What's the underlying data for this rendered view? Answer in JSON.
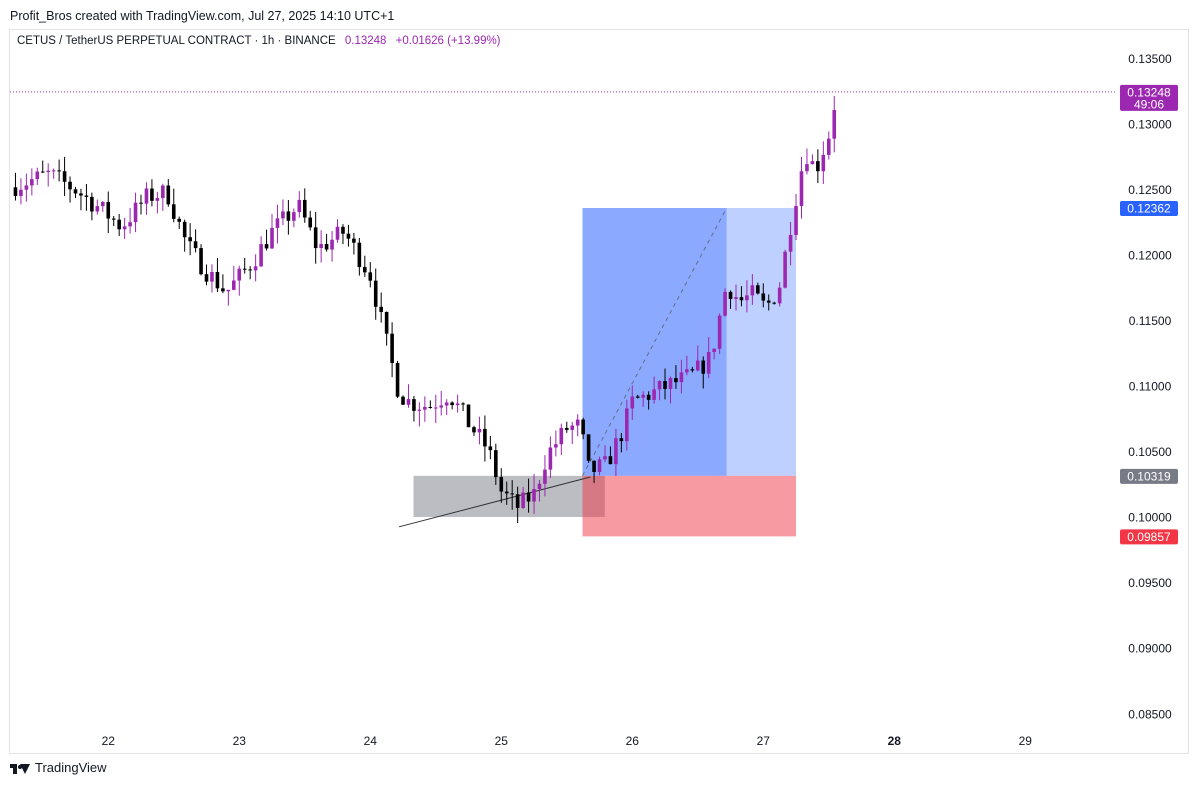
{
  "header": {
    "attribution": "Profit_Bros created with TradingView.com, Jul 27, 2025 14:10 UTC+1"
  },
  "symbol_line": {
    "symbol": "CETUS / TetherUS PERPETUAL CONTRACT · 1h · BINANCE",
    "price": "0.13248",
    "change": "+0.01626 (+13.99%)"
  },
  "footer": {
    "brand": "TradingView"
  },
  "colors": {
    "candle_up": "#9c27b0",
    "candle_down": "#000000",
    "target_zone": "#2962ff",
    "stop_zone": "#f23645",
    "grey_zone": "#787b86",
    "axis_text": "#131722"
  },
  "chart_data": {
    "type": "candlestick",
    "timeframe": "1h",
    "x_ticks": [
      "22",
      "23",
      "24",
      "25",
      "26",
      "27",
      "28",
      "29"
    ],
    "x_domain": [
      21.25,
      29.7
    ],
    "y_ticks": [
      "0.13500",
      "0.13000",
      "0.12500",
      "0.12000",
      "0.11500",
      "0.11000",
      "0.10500",
      "0.10000",
      "0.09500",
      "0.09000",
      "0.08500"
    ],
    "y_domain": [
      0.0838,
      0.1372
    ],
    "last_price": {
      "value": 0.13248,
      "label": "0.13248",
      "countdown": "49:06"
    },
    "price_labels": [
      {
        "value": 0.12362,
        "label": "0.12362",
        "color": "#2962ff"
      },
      {
        "value": 0.10319,
        "label": "0.10319",
        "color": "#787b86"
      },
      {
        "value": 0.09857,
        "label": "0.09857",
        "color": "#f23645"
      }
    ],
    "position": {
      "entry": 0.10319,
      "target": 0.12362,
      "stop": 0.09857,
      "start": 25.62,
      "filled_until": 26.72,
      "end": 27.25
    },
    "grey_zone": {
      "start": 24.33,
      "end": 25.79,
      "top": 0.10319,
      "bottom": 0.10005
    },
    "trendline": {
      "x1": 24.22,
      "y1": 0.0993,
      "x2": 25.68,
      "y2": 0.1031
    },
    "projection": {
      "x1": 25.62,
      "y1": 0.10319,
      "x2": 26.72,
      "y2": 0.12362
    },
    "anchors": [
      [
        21.25,
        0.1252
      ],
      [
        21.55,
        0.1262
      ],
      [
        21.75,
        0.125
      ],
      [
        21.95,
        0.1235
      ],
      [
        22.1,
        0.1222
      ],
      [
        22.3,
        0.1245
      ],
      [
        22.45,
        0.1248
      ],
      [
        22.6,
        0.1208
      ],
      [
        22.75,
        0.1188
      ],
      [
        22.9,
        0.1172
      ],
      [
        23.1,
        0.1195
      ],
      [
        23.25,
        0.1218
      ],
      [
        23.45,
        0.1238
      ],
      [
        23.6,
        0.1205
      ],
      [
        23.8,
        0.1218
      ],
      [
        24.0,
        0.1185
      ],
      [
        24.12,
        0.1135
      ],
      [
        24.22,
        0.1095
      ],
      [
        24.3,
        0.1088
      ],
      [
        24.45,
        0.1085
      ],
      [
        24.6,
        0.1095
      ],
      [
        24.75,
        0.1072
      ],
      [
        24.9,
        0.1052
      ],
      [
        25.0,
        0.102
      ],
      [
        25.12,
        0.1008
      ],
      [
        25.25,
        0.1018
      ],
      [
        25.35,
        0.1048
      ],
      [
        25.5,
        0.1068
      ],
      [
        25.6,
        0.107
      ],
      [
        25.67,
        0.1035
      ],
      [
        25.8,
        0.104
      ],
      [
        25.92,
        0.1065
      ],
      [
        26.0,
        0.1088
      ],
      [
        26.15,
        0.1095
      ],
      [
        26.3,
        0.1102
      ],
      [
        26.45,
        0.1108
      ],
      [
        26.6,
        0.1122
      ],
      [
        26.72,
        0.1178
      ],
      [
        26.82,
        0.1165
      ],
      [
        26.92,
        0.117
      ],
      [
        27.02,
        0.116
      ],
      [
        27.12,
        0.1175
      ],
      [
        27.22,
        0.123
      ],
      [
        27.32,
        0.128
      ],
      [
        27.4,
        0.1265
      ],
      [
        27.5,
        0.1292
      ],
      [
        27.56,
        0.1325
      ]
    ]
  }
}
